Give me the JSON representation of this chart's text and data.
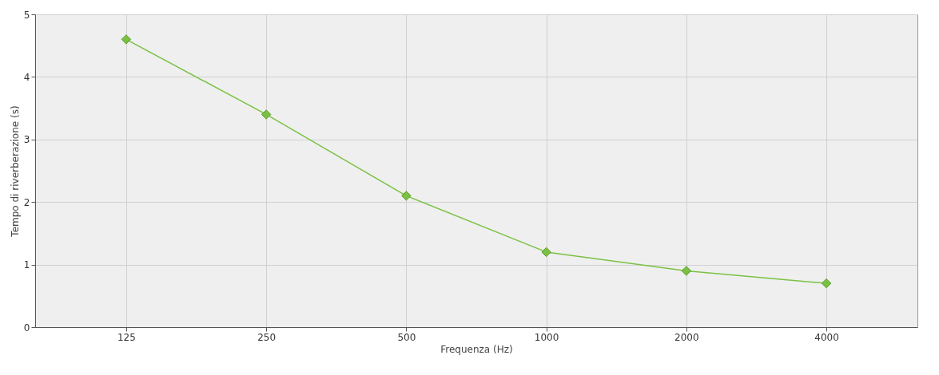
{
  "chart_data": {
    "type": "line",
    "xlabel": "Frequenza (Hz)",
    "ylabel": "Tempo di riverberazione (s)",
    "categories": [
      "125",
      "250",
      "500",
      "1000",
      "2000",
      "4000"
    ],
    "series": [
      {
        "color": "#7ac143",
        "values": [
          4.6,
          3.4,
          2.1,
          1.2,
          0.9,
          0.7
        ]
      }
    ],
    "ylim": [
      0,
      5
    ],
    "yticks": [
      0,
      1,
      2,
      3,
      4,
      5
    ],
    "grid": true,
    "marker": "diamond",
    "line_style": "solid"
  }
}
